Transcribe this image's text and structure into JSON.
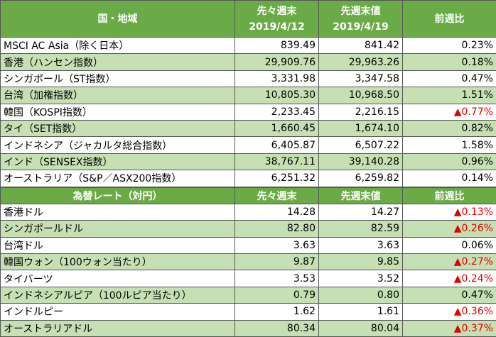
{
  "table1": {
    "header": [
      {
        "lines": [
          "国・地域"
        ]
      },
      {
        "lines": [
          "先々週末",
          "2019/4/12"
        ]
      },
      {
        "lines": [
          "先週末値",
          "2019/4/19"
        ]
      },
      {
        "lines": [
          "前週比"
        ]
      }
    ],
    "rows": [
      {
        "cells": [
          "MSCI AC Asia（除く日本）",
          "839.49",
          "841.42",
          "0.23%"
        ]
      },
      {
        "cells": [
          "香港（ハンセン指数）",
          "29,909.76",
          "29,963.26",
          "0.18%"
        ]
      },
      {
        "cells": [
          "シンガポール（ST指数）",
          "3,331.98",
          "3,347.58",
          "0.47%"
        ]
      },
      {
        "cells": [
          "台湾（加権指数）",
          "10,805.30",
          "10,968.50",
          "1.51%"
        ]
      },
      {
        "cells": [
          "韓国（KOSPI指数）",
          "2,233.45",
          "2,216.15",
          "▲0.77%"
        ],
        "negative": true
      },
      {
        "cells": [
          "タイ（SET指数）",
          "1,660.45",
          "1,674.10",
          "0.82%"
        ]
      },
      {
        "cells": [
          "インドネシア（ジャカルタ総合指数）",
          "6,405.87",
          "6,507.22",
          "1.58%"
        ]
      },
      {
        "cells": [
          "インド（SENSEX指数）",
          "38,767.11",
          "39,140.28",
          "0.96%"
        ]
      },
      {
        "cells": [
          "オーストラリア（S&P／ASX200指数）",
          "6,251.32",
          "6,259.82",
          "0.14%"
        ]
      }
    ]
  },
  "table2": {
    "header": [
      {
        "lines": [
          "為替レート（対円）"
        ]
      },
      {
        "lines": [
          "先々週末"
        ]
      },
      {
        "lines": [
          "先週末値"
        ]
      },
      {
        "lines": [
          "前週比"
        ]
      }
    ],
    "rows": [
      {
        "cells": [
          "香港ドル",
          "14.28",
          "14.27",
          "▲0.13%"
        ],
        "negative": true
      },
      {
        "cells": [
          "シンガポールドル",
          "82.80",
          "82.59",
          "▲0.26%"
        ],
        "negative": true
      },
      {
        "cells": [
          "台湾ドル",
          "3.63",
          "3.63",
          "0.06%"
        ]
      },
      {
        "cells": [
          "韓国ウォン（100ウォン当たり）",
          "9.87",
          "9.85",
          "▲0.27%"
        ],
        "negative": true
      },
      {
        "cells": [
          "タイバーツ",
          "3.53",
          "3.52",
          "▲0.24%"
        ],
        "negative": true
      },
      {
        "cells": [
          "インドネシアルピア（100ルピア当たり）",
          "0.79",
          "0.80",
          "0.47%"
        ]
      },
      {
        "cells": [
          "インドルピー",
          "1.62",
          "1.61",
          "▲0.36%"
        ],
        "negative": true
      },
      {
        "cells": [
          "オーストラリアドル",
          "80.34",
          "80.04",
          "▲0.37%"
        ],
        "negative": true
      }
    ]
  }
}
